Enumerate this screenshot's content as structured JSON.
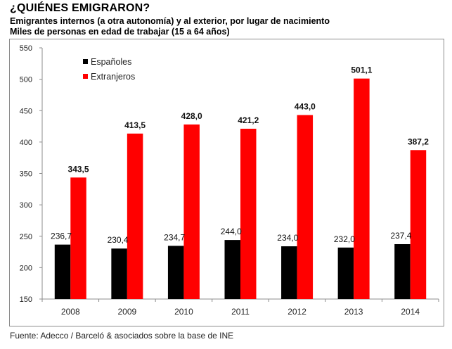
{
  "header": {
    "title": "¿QUIÉNES EMIGRARON?",
    "subtitle1": "Emigrantes internos (a otra autonomía) y al exterior, por lugar de nacimiento",
    "subtitle2": "Miles de personas en edad de trabajar (15 a 64 años)"
  },
  "footer": {
    "source": "Fuente: Adecco / Barceló & asociados sobre la base de INE"
  },
  "chart_data": {
    "type": "bar",
    "title": "¿QUIÉNES EMIGRARON?",
    "xlabel": "",
    "ylabel": "",
    "categories": [
      "2008",
      "2009",
      "2010",
      "2011",
      "2012",
      "2013",
      "2014"
    ],
    "series": [
      {
        "name": "Españoles",
        "color": "#000000",
        "values": [
          236.7,
          230.4,
          234.7,
          244.0,
          234.0,
          232.0,
          237.4
        ],
        "labels": [
          "236,7",
          "230,4",
          "234,7",
          "244,0",
          "234,0",
          "232,0",
          "237,4"
        ]
      },
      {
        "name": "Extranjeros",
        "color": "#ff0000",
        "values": [
          343.5,
          413.5,
          428.0,
          421.2,
          443.0,
          501.1,
          387.2
        ],
        "labels": [
          "343,5",
          "413,5",
          "428,0",
          "421,2",
          "443,0",
          "501,1",
          "387,2"
        ]
      }
    ],
    "ylim": [
      150,
      550
    ],
    "yticks": [
      150,
      200,
      250,
      300,
      350,
      400,
      450,
      500,
      550
    ],
    "grid": false,
    "legend": "top-left"
  }
}
